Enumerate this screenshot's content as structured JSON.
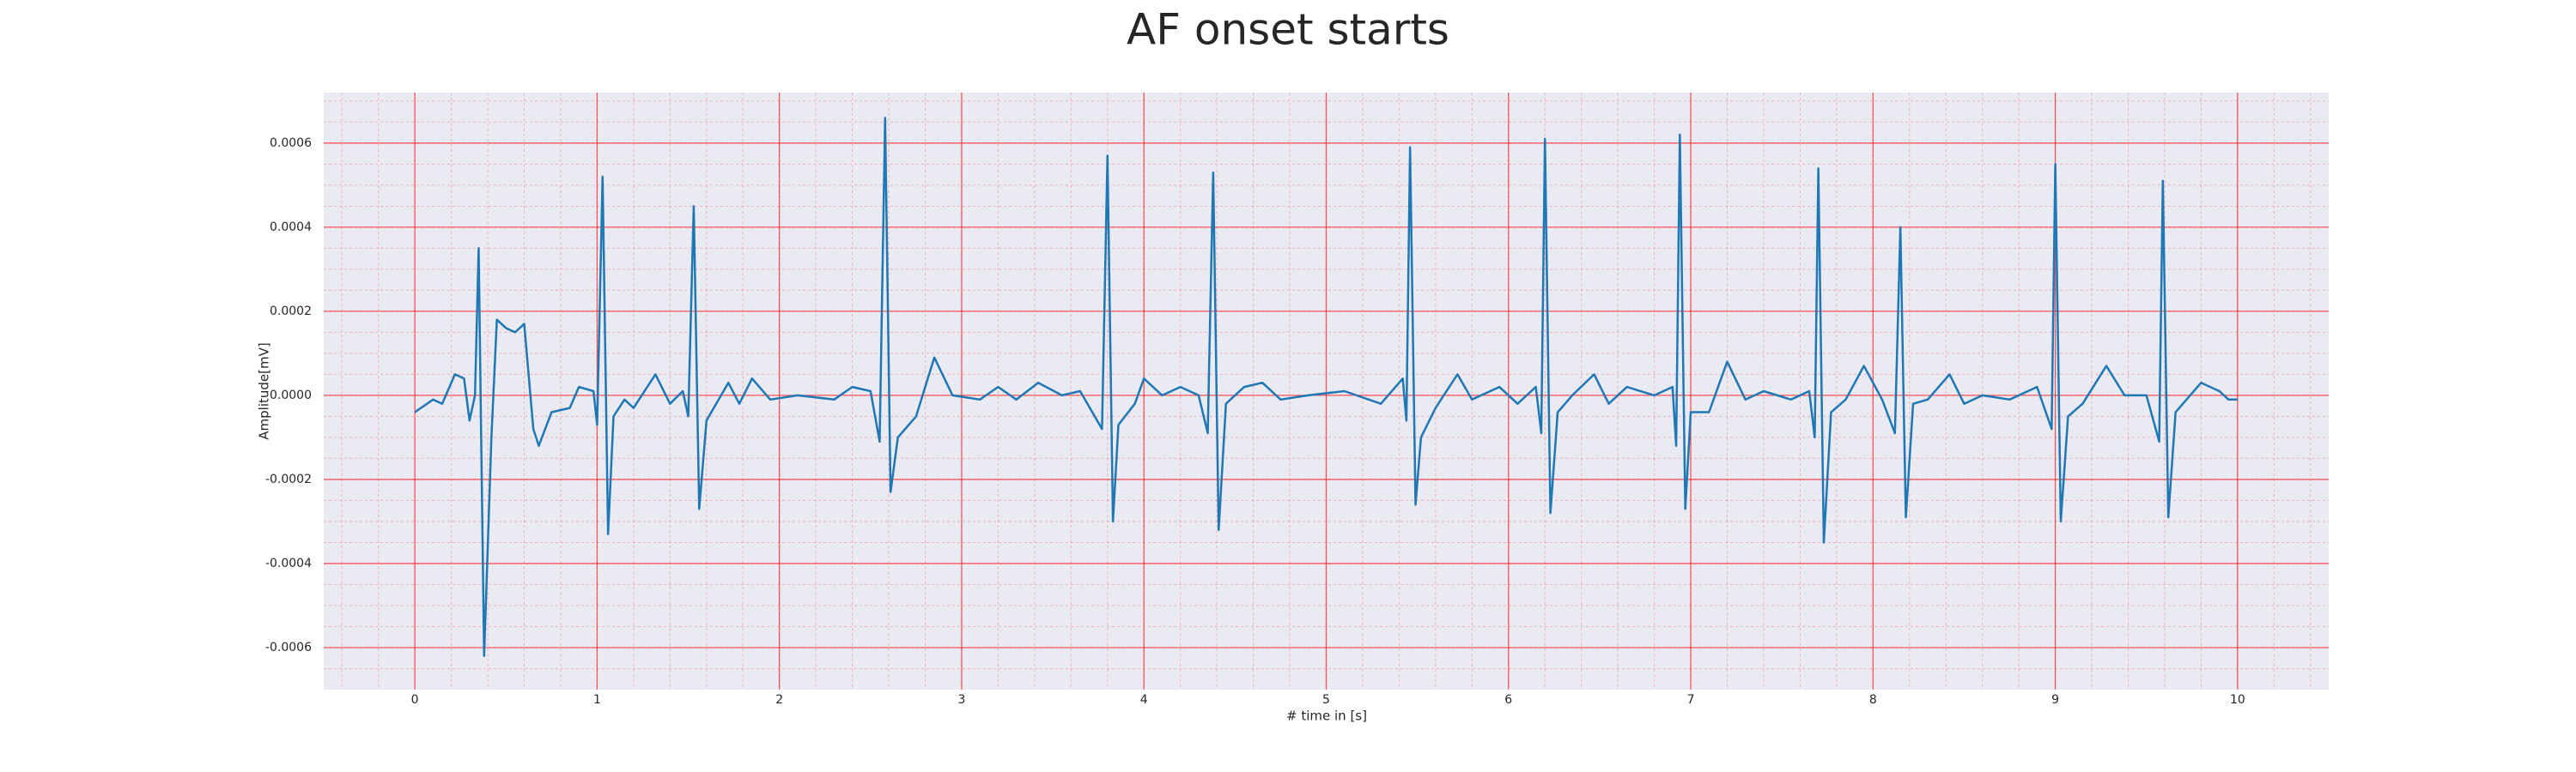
{
  "chart_data": {
    "type": "line",
    "title": "AF onset starts",
    "x_label": "# time in [s]",
    "y_label": "Amplitude[mV]",
    "color": "#1f77b4",
    "grid": true,
    "grid_color": "#ff0000",
    "minor_grid": true,
    "background": "#eaeaf2",
    "x": [
      0,
      0.1,
      0.15,
      0.22,
      0.27,
      0.3,
      0.33,
      0.35,
      0.38,
      0.42,
      0.45,
      0.5,
      0.55,
      0.6,
      0.65,
      0.68,
      0.75,
      0.85,
      0.9,
      0.98,
      1.0,
      1.03,
      1.06,
      1.09,
      1.15,
      1.2,
      1.32,
      1.4,
      1.47,
      1.5,
      1.53,
      1.56,
      1.6,
      1.72,
      1.78,
      1.85,
      1.95,
      2.1,
      2.3,
      2.4,
      2.5,
      2.55,
      2.58,
      2.61,
      2.65,
      2.75,
      2.85,
      2.95,
      3.1,
      3.2,
      3.3,
      3.42,
      3.55,
      3.65,
      3.77,
      3.8,
      3.83,
      3.86,
      3.95,
      4.0,
      4.1,
      4.2,
      4.3,
      4.35,
      4.38,
      4.41,
      4.45,
      4.55,
      4.65,
      4.75,
      4.9,
      5.1,
      5.3,
      5.42,
      5.44,
      5.46,
      5.49,
      5.52,
      5.6,
      5.72,
      5.8,
      5.95,
      6.05,
      6.15,
      6.18,
      6.2,
      6.23,
      6.27,
      6.35,
      6.47,
      6.55,
      6.65,
      6.8,
      6.9,
      6.92,
      6.94,
      6.97,
      7.0,
      7.1,
      7.2,
      7.3,
      7.4,
      7.55,
      7.65,
      7.68,
      7.7,
      7.73,
      7.77,
      7.85,
      7.95,
      8.05,
      8.12,
      8.15,
      8.18,
      8.22,
      8.3,
      8.42,
      8.5,
      8.6,
      8.75,
      8.9,
      8.98,
      9.0,
      9.03,
      9.07,
      9.15,
      9.28,
      9.38,
      9.5,
      9.57,
      9.59,
      9.62,
      9.66,
      9.72,
      9.8,
      9.9,
      9.95,
      10.0
    ],
    "values": [
      -4e-05,
      -1e-05,
      -2e-05,
      5e-05,
      4e-05,
      -6e-05,
      0,
      0.00035,
      -0.00062,
      -0.0001,
      0.00018,
      0.00016,
      0.00015,
      0.00017,
      -8e-05,
      -0.00012,
      -4e-05,
      -3e-05,
      2e-05,
      1e-05,
      -7e-05,
      0.00052,
      -0.00033,
      -5e-05,
      -1e-05,
      -3e-05,
      5e-05,
      -2e-05,
      1e-05,
      -5e-05,
      0.00045,
      -0.00027,
      -6e-05,
      3e-05,
      -2e-05,
      4e-05,
      -1e-05,
      0,
      -1e-05,
      2e-05,
      1e-05,
      -0.00011,
      0.00066,
      -0.00023,
      -0.0001,
      -5e-05,
      9e-05,
      0,
      -1e-05,
      2e-05,
      -1e-05,
      3e-05,
      0,
      1e-05,
      -8e-05,
      0.00057,
      -0.0003,
      -7e-05,
      -2e-05,
      4e-05,
      0,
      2e-05,
      0,
      -9e-05,
      0.00053,
      -0.00032,
      -2e-05,
      2e-05,
      3e-05,
      -1e-05,
      0,
      1e-05,
      -2e-05,
      4e-05,
      -6e-05,
      0.00059,
      -0.00026,
      -0.0001,
      -3e-05,
      5e-05,
      -1e-05,
      2e-05,
      -2e-05,
      2e-05,
      -9e-05,
      0.00061,
      -0.00028,
      -4e-05,
      0,
      5e-05,
      -2e-05,
      2e-05,
      0,
      2e-05,
      -0.00012,
      0.00062,
      -0.00027,
      -4e-05,
      -4e-05,
      8e-05,
      -1e-05,
      1e-05,
      -1e-05,
      1e-05,
      -0.0001,
      0.00054,
      -0.00035,
      -4e-05,
      -1e-05,
      7e-05,
      -1e-05,
      -9e-05,
      0.0004,
      -0.00029,
      -2e-05,
      -1e-05,
      5e-05,
      -2e-05,
      0,
      -1e-05,
      2e-05,
      -8e-05,
      0.00055,
      -0.0003,
      -5e-05,
      -2e-05,
      7e-05,
      0,
      0,
      -0.00011,
      0.00051,
      -0.00029,
      -4e-05,
      -1e-05,
      3e-05,
      1e-05,
      -1e-05,
      -1e-05
    ],
    "xlim": [
      -0.5,
      10.5
    ],
    "xticks": [
      0,
      1,
      2,
      3,
      4,
      5,
      6,
      7,
      8,
      9,
      10
    ],
    "ylim": [
      -0.0007,
      0.00072
    ],
    "yticks": [
      -0.0006,
      -0.0004,
      -0.0002,
      {
        "value": 0,
        "label": "0.0000"
      },
      0.0002,
      0.0004,
      0.0006
    ]
  }
}
